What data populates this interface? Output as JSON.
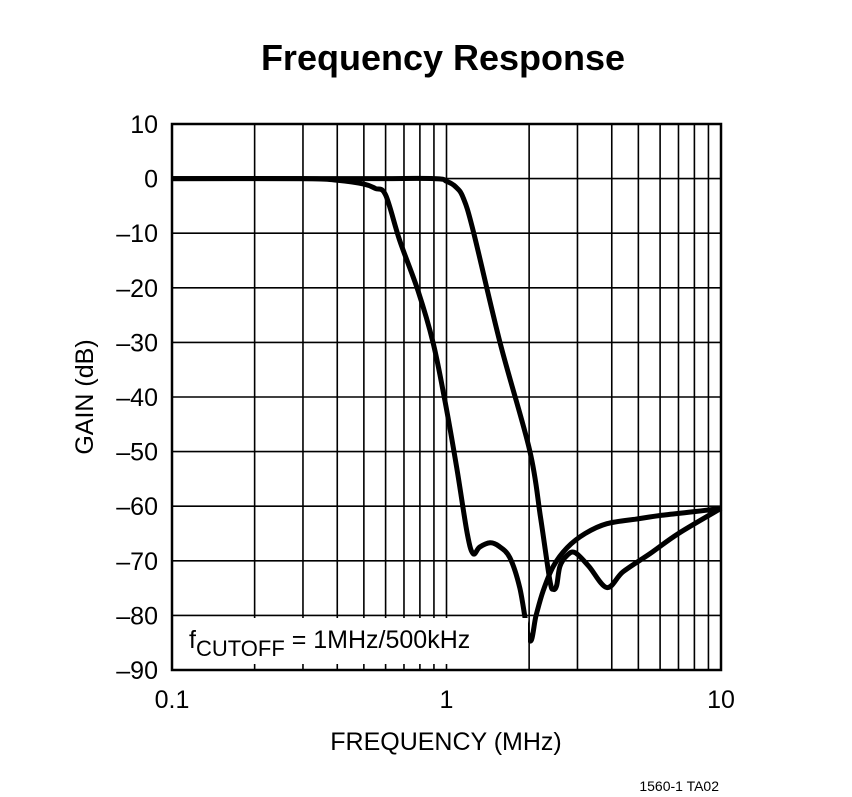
{
  "chart_data": {
    "type": "line",
    "title": "Frequency Response",
    "xlabel": "FREQUENCY (MHz)",
    "ylabel": "GAIN (dB)",
    "xscale": "log",
    "xlim": [
      0.1,
      10
    ],
    "ylim": [
      -90,
      10
    ],
    "grid": true,
    "x_tick_labels": [
      "0.1",
      "1",
      "10"
    ],
    "x_ticks": [
      0.1,
      1,
      10
    ],
    "y_ticks": [
      10,
      0,
      -10,
      -20,
      -30,
      -40,
      -50,
      -60,
      -70,
      -80,
      -90
    ],
    "y_tick_labels": [
      "10",
      "0",
      "–10",
      "–20",
      "–30",
      "–40",
      "–50",
      "–60",
      "–70",
      "–80",
      "–90"
    ],
    "annotation": {
      "prefix": "f",
      "subscript": "CUTOFF",
      "text": " = 1MHz/500kHz"
    },
    "series": [
      {
        "x": [
          0.1,
          0.3,
          0.4,
          0.5,
          0.55,
          0.6,
          0.676,
          0.787,
          0.893,
          0.987,
          1.09,
          1.19,
          1.25,
          1.32,
          1.44,
          1.55,
          1.7,
          1.85,
          2.01,
          2.12,
          2.25,
          2.45,
          2.75,
          3.2,
          3.84,
          5.0,
          6.0,
          8.0,
          10
        ],
        "y": [
          0,
          0,
          -0.3,
          -1,
          -1.8,
          -3,
          -11.4,
          -20.5,
          -30,
          -40.7,
          -53,
          -65,
          -68.7,
          -67.5,
          -66.7,
          -67.3,
          -69.4,
          -75,
          -84.6,
          -80,
          -75.5,
          -71,
          -67.6,
          -65,
          -63.2,
          -62.3,
          -61.7,
          -61,
          -60.4
        ]
      },
      {
        "x": [
          0.1,
          0.5,
          0.9,
          1.0,
          1.08,
          1.15,
          1.25,
          1.57,
          2.01,
          2.2,
          2.38,
          2.45,
          2.52,
          2.59,
          2.75,
          2.94,
          3.3,
          3.84,
          4.4,
          5.51,
          7.0,
          10
        ],
        "y": [
          0,
          0,
          0,
          -0.5,
          -1.5,
          -3.5,
          -9.5,
          -30.2,
          -49.8,
          -62,
          -73.6,
          -75.2,
          -74.5,
          -71,
          -69,
          -68.5,
          -71,
          -74.9,
          -72,
          -68.7,
          -65,
          -60.4
        ]
      }
    ]
  },
  "footnote": "1560-1 TA02"
}
